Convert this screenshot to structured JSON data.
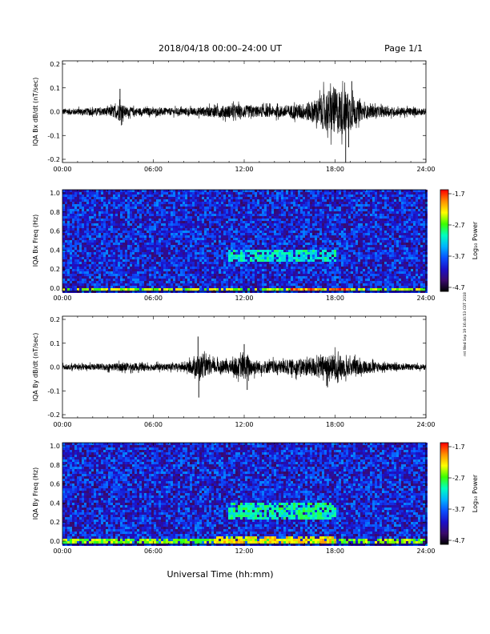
{
  "header": {
    "title": "2018/04/18  00:00–24:00 UT",
    "page": "Page 1/1"
  },
  "footer": {
    "xlabel": "Universal Time (hh:mm)",
    "side_stamp": "mt Wed Sep 19 16:40:53 CDT 2018"
  },
  "colorbar": {
    "label": "Log₁₀ Power",
    "ticks": [
      "-1.7",
      "-2.7",
      "-3.7",
      "-4.7"
    ],
    "range": [
      -4.7,
      -1.7
    ],
    "colors": [
      "#000000",
      "#3a0a6a",
      "#1c10c8",
      "#0a50ff",
      "#00b4ff",
      "#00ffc0",
      "#3cff00",
      "#ffff00",
      "#ff9000",
      "#ff0000"
    ]
  },
  "x_ticks": [
    "00:00",
    "06:00",
    "12:00",
    "18:00",
    "24:00"
  ],
  "chart_data": [
    {
      "type": "line",
      "ylabel": "IQA Bx dB/dt (nT/sec)",
      "xlim": [
        0,
        24
      ],
      "ylim": [
        -0.2,
        0.2
      ],
      "yticks": [
        "0.2",
        "0.1",
        "0.0",
        "-0.1",
        "-0.2"
      ],
      "series_color": "#000000",
      "envelope": {
        "x": [
          0,
          1,
          2,
          3,
          3.5,
          3.8,
          4.2,
          5,
          6,
          7,
          8,
          9,
          10,
          11,
          12,
          13,
          14,
          15,
          16,
          16.5,
          17,
          17.5,
          18,
          18.5,
          19,
          19.5,
          20,
          21,
          22,
          23,
          24
        ],
        "amp": [
          0.015,
          0.015,
          0.017,
          0.02,
          0.03,
          0.045,
          0.022,
          0.018,
          0.018,
          0.017,
          0.017,
          0.02,
          0.025,
          0.03,
          0.03,
          0.025,
          0.025,
          0.03,
          0.04,
          0.05,
          0.07,
          0.1,
          0.11,
          0.1,
          0.09,
          0.05,
          0.03,
          0.025,
          0.02,
          0.018,
          0.015
        ]
      },
      "spikes": [
        {
          "x": 3.8,
          "y": 0.09
        },
        {
          "x": 18.7,
          "y": -0.2
        },
        {
          "x": 19.1,
          "y": 0.12
        },
        {
          "x": 18.9,
          "y": -0.14
        }
      ]
    },
    {
      "type": "heatmap",
      "ylabel": "IQA Bx Freq (Hz)",
      "xlim": [
        0,
        24
      ],
      "ylim": [
        0,
        1.0
      ],
      "yticks": [
        "1.0",
        "0.8",
        "0.6",
        "0.4",
        "0.2",
        "0.0"
      ],
      "value": "log10 power",
      "features": [
        {
          "t0": 0,
          "t1": 24,
          "f0": 0.0,
          "f1": 0.03,
          "level": -2.5
        },
        {
          "t0": 15,
          "t1": 19,
          "f0": 0.0,
          "f1": 0.04,
          "level": -1.9
        },
        {
          "t0": 11,
          "t1": 18,
          "f0": 0.28,
          "f1": 0.42,
          "level": -3.1
        }
      ]
    },
    {
      "type": "line",
      "ylabel": "IQA By dB/dt (nT/sec)",
      "xlim": [
        0,
        24
      ],
      "ylim": [
        -0.2,
        0.2
      ],
      "yticks": [
        "0.2",
        "0.1",
        "0.0",
        "-0.1",
        "-0.2"
      ],
      "series_color": "#000000",
      "envelope": {
        "x": [
          0,
          1,
          2,
          3,
          4,
          5,
          6,
          7,
          8,
          8.5,
          9,
          9.5,
          10,
          11,
          11.7,
          12,
          12.5,
          13,
          14,
          15,
          16,
          17,
          18,
          18.5,
          19,
          20,
          21,
          22,
          23,
          24
        ],
        "amp": [
          0.012,
          0.012,
          0.014,
          0.016,
          0.02,
          0.018,
          0.016,
          0.016,
          0.018,
          0.03,
          0.06,
          0.04,
          0.03,
          0.03,
          0.045,
          0.06,
          0.04,
          0.03,
          0.03,
          0.035,
          0.04,
          0.05,
          0.06,
          0.05,
          0.04,
          0.03,
          0.02,
          0.015,
          0.013,
          0.012
        ]
      },
      "spikes": [
        {
          "x": 8.95,
          "y": 0.12
        },
        {
          "x": 9.0,
          "y": -0.12
        },
        {
          "x": 12.0,
          "y": 0.09
        },
        {
          "x": 12.2,
          "y": -0.09
        },
        {
          "x": 17.5,
          "y": -0.08
        }
      ]
    },
    {
      "type": "heatmap",
      "ylabel": "IQA By Freq (Hz)",
      "xlim": [
        0,
        24
      ],
      "ylim": [
        0,
        1.0
      ],
      "yticks": [
        "1.0",
        "0.8",
        "0.6",
        "0.4",
        "0.2",
        "0.0"
      ],
      "value": "log10 power",
      "features": [
        {
          "t0": 0,
          "t1": 24,
          "f0": 0.0,
          "f1": 0.05,
          "level": -2.6
        },
        {
          "t0": 10,
          "t1": 18,
          "f0": 0.0,
          "f1": 0.08,
          "level": -2.3
        },
        {
          "t0": 11,
          "t1": 18,
          "f0": 0.25,
          "f1": 0.42,
          "level": -3.0
        }
      ]
    }
  ]
}
